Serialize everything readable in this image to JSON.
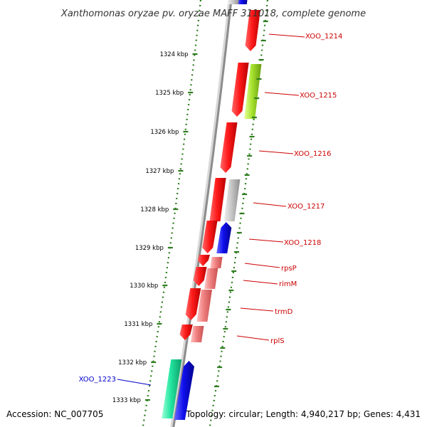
{
  "title": "Xanthomonas oryzae pv. oryzae MAFF 311018, complete genome",
  "footer": {
    "accession": "Accession: NC_007705",
    "summary": "Topology: circular; Length: 4,940,217 bp; Genes: 4,431"
  },
  "colors": {
    "backbone": "#8c8c8c",
    "tick": "#2e7d1e",
    "label_red": "#cc0000",
    "label_blue": "#0000cc",
    "gene_red": "#ff1a1a",
    "gene_pink": "#f08080",
    "gene_gray": "#c8c8c8",
    "gene_lime": "#a6e22e",
    "gene_blue": "#1010ee",
    "gene_teal": "#22e5a0"
  },
  "ticks": [
    "1324 kbp",
    "1325 kbp",
    "1326 kbp",
    "1327 kbp",
    "1328 kbp",
    "1329 kbp",
    "1330 kbp",
    "1331 kbp",
    "1332 kbp",
    "1333 kbp"
  ],
  "gene_labels": [
    {
      "text": "XOO_1214",
      "color": "red"
    },
    {
      "text": "XOO_1215",
      "color": "red"
    },
    {
      "text": "XOO_1216",
      "color": "red"
    },
    {
      "text": "XOO_1217",
      "color": "red"
    },
    {
      "text": "XOO_1218",
      "color": "red"
    },
    {
      "text": "rpsP",
      "color": "red"
    },
    {
      "text": "rimM",
      "color": "red"
    },
    {
      "text": "trmD",
      "color": "red"
    },
    {
      "text": "rplS",
      "color": "red"
    },
    {
      "text": "XOO_1223",
      "color": "blue"
    }
  ]
}
